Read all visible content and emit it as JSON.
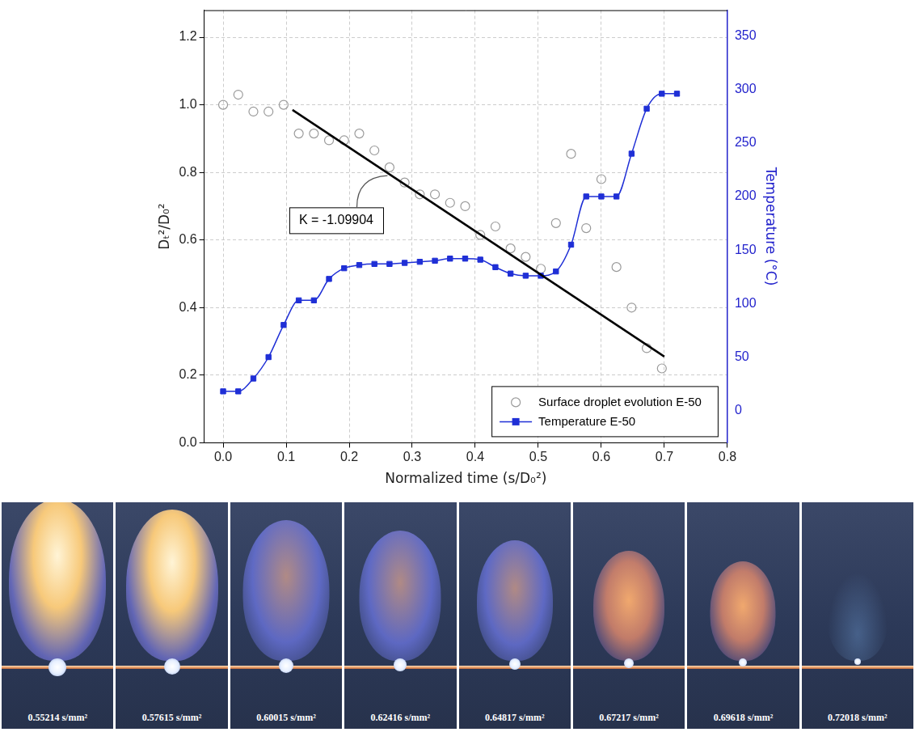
{
  "chart_data": {
    "type": "scatter",
    "x_label": "Normalized time (s/D₀²)",
    "y_label": "Dₜ²/D₀²",
    "y2_label": "Temperature (°C)",
    "xlim": [
      -0.03,
      0.8
    ],
    "xticks": [
      {
        "value": 0,
        "label": "0.0"
      },
      0.1,
      0.2,
      0.3,
      0.4,
      0.5,
      0.6,
      0.7,
      0.8
    ],
    "ylim": [
      0,
      1.28
    ],
    "yticks": [
      {
        "value": 0,
        "label": "0.0"
      },
      0.2,
      0.4,
      0.6,
      0.8,
      {
        "value": 1,
        "label": "1.0"
      },
      1.2
    ],
    "y2lim": [
      -30,
      374
    ],
    "y2ticks": [
      0,
      50,
      100,
      150,
      200,
      250,
      300,
      350
    ],
    "grid": true,
    "legend": "lower right",
    "series": [
      {
        "name": "Surface droplet evolution E-50",
        "type": "scatter",
        "color": "#9a9a9a",
        "marker": "open_circle",
        "line_style": "none",
        "x": [
          0,
          0.024,
          0.048,
          0.072,
          0.096,
          0.12,
          0.144,
          0.168,
          0.192,
          0.216,
          0.24,
          0.264,
          0.288,
          0.312,
          0.336,
          0.36,
          0.384,
          0.408,
          0.432,
          0.456,
          0.48,
          0.504,
          0.528,
          0.552,
          0.576,
          0.6,
          0.624,
          0.648,
          0.672,
          0.696
        ],
        "values": [
          1.0,
          1.03,
          0.98,
          0.98,
          1.0,
          0.915,
          0.915,
          0.895,
          0.895,
          0.915,
          0.865,
          0.815,
          0.77,
          0.735,
          0.735,
          0.71,
          0.7,
          0.615,
          0.64,
          0.575,
          0.55,
          0.515,
          0.65,
          0.855,
          0.635,
          0.78,
          0.52,
          0.4,
          0.28,
          0.22
        ]
      },
      {
        "name": "Temperature E-50",
        "type": "line",
        "axis": "y2",
        "color": "#1f2fd6",
        "marker": "square",
        "line_style": "solid",
        "x": [
          0,
          0.024,
          0.048,
          0.072,
          0.096,
          0.12,
          0.144,
          0.168,
          0.192,
          0.216,
          0.24,
          0.264,
          0.288,
          0.312,
          0.336,
          0.36,
          0.384,
          0.408,
          0.432,
          0.456,
          0.48,
          0.504,
          0.528,
          0.552,
          0.576,
          0.6,
          0.624,
          0.648,
          0.672,
          0.696,
          0.72
        ],
        "values": [
          18,
          18,
          30,
          50,
          80,
          103,
          103,
          123,
          133,
          136,
          137,
          137,
          138,
          139,
          140,
          142,
          142,
          141,
          134,
          128,
          126,
          126,
          130,
          155,
          200,
          200,
          200,
          240,
          282,
          296,
          296
        ]
      }
    ],
    "fit_line": {
      "x": [
        0.11,
        0.7
      ],
      "values": [
        0.985,
        0.255
      ],
      "color": "#000000",
      "label": "K = -1.09904"
    }
  },
  "image_strip": {
    "captions": [
      "0.55214 s/mm²",
      "0.57615 s/mm²",
      "0.60015 s/mm²",
      "0.62416 s/mm²",
      "0.64817 s/mm²",
      "0.67217 s/mm²",
      "0.69618 s/mm²",
      "0.72018 s/mm²"
    ]
  }
}
